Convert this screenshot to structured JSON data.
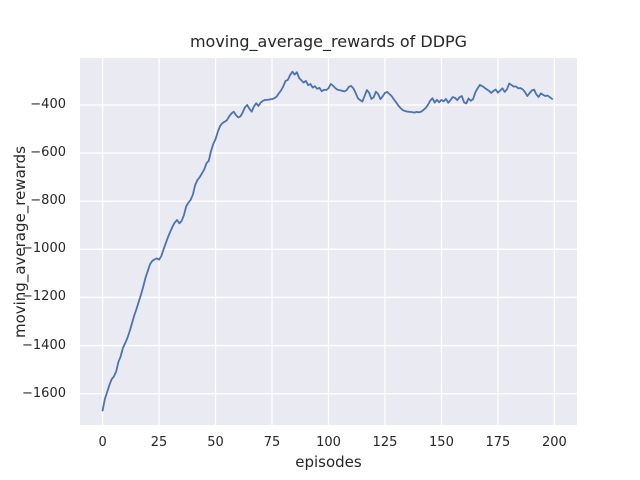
{
  "figure": {
    "background_color": "#ffffff",
    "plot_background_color": "#eaeaf2",
    "grid_color": "#ffffff",
    "text_color": "#262626"
  },
  "chart_data": {
    "type": "line",
    "title": "moving_average_rewards of DDPG",
    "xlabel": "episodes",
    "ylabel": "moving_average_rewards",
    "grid": true,
    "legend": "none",
    "xlim": [
      -10,
      210
    ],
    "ylim": [
      -1730,
      -205
    ],
    "x_ticks": [
      0,
      25,
      50,
      75,
      100,
      125,
      150,
      175,
      200
    ],
    "x_tick_labels": [
      "0",
      "25",
      "50",
      "75",
      "100",
      "125",
      "150",
      "175",
      "200"
    ],
    "y_ticks": [
      -400,
      -600,
      -800,
      -1000,
      -1200,
      -1400,
      -1600
    ],
    "y_tick_labels": [
      "−400",
      "−600",
      "−800",
      "−1000",
      "−1200",
      "−1400",
      "−1600"
    ],
    "series": [
      {
        "name": "DDPG moving average reward",
        "color": "#4c72b0",
        "line_width": 1.8,
        "x_start": 0,
        "x_step": 1,
        "values": [
          -1670,
          -1622,
          -1594,
          -1564,
          -1540,
          -1528,
          -1508,
          -1468,
          -1445,
          -1410,
          -1390,
          -1368,
          -1340,
          -1308,
          -1275,
          -1248,
          -1218,
          -1188,
          -1155,
          -1118,
          -1090,
          -1062,
          -1048,
          -1042,
          -1038,
          -1043,
          -1028,
          -1000,
          -974,
          -948,
          -926,
          -905,
          -888,
          -878,
          -892,
          -882,
          -858,
          -822,
          -806,
          -794,
          -772,
          -732,
          -712,
          -700,
          -684,
          -668,
          -642,
          -632,
          -592,
          -562,
          -542,
          -512,
          -488,
          -476,
          -470,
          -464,
          -448,
          -436,
          -428,
          -442,
          -452,
          -448,
          -432,
          -410,
          -400,
          -416,
          -428,
          -406,
          -393,
          -404,
          -390,
          -383,
          -379,
          -379,
          -377,
          -376,
          -372,
          -366,
          -352,
          -340,
          -322,
          -300,
          -296,
          -276,
          -262,
          -274,
          -264,
          -288,
          -298,
          -307,
          -300,
          -318,
          -313,
          -328,
          -322,
          -333,
          -329,
          -343,
          -337,
          -338,
          -331,
          -313,
          -320,
          -330,
          -337,
          -339,
          -341,
          -344,
          -339,
          -325,
          -321,
          -331,
          -350,
          -372,
          -380,
          -386,
          -362,
          -338,
          -350,
          -375,
          -368,
          -345,
          -355,
          -376,
          -364,
          -350,
          -346,
          -355,
          -364,
          -378,
          -390,
          -404,
          -414,
          -422,
          -426,
          -428,
          -429,
          -430,
          -432,
          -429,
          -431,
          -428,
          -421,
          -413,
          -400,
          -383,
          -372,
          -390,
          -379,
          -389,
          -379,
          -385,
          -375,
          -391,
          -380,
          -367,
          -371,
          -380,
          -368,
          -363,
          -389,
          -394,
          -373,
          -383,
          -376,
          -348,
          -331,
          -317,
          -321,
          -328,
          -335,
          -341,
          -350,
          -342,
          -336,
          -349,
          -340,
          -331,
          -346,
          -335,
          -311,
          -317,
          -324,
          -323,
          -331,
          -330,
          -336,
          -347,
          -363,
          -351,
          -340,
          -336,
          -356,
          -367,
          -352,
          -358,
          -363,
          -361,
          -368,
          -375
        ]
      }
    ]
  }
}
